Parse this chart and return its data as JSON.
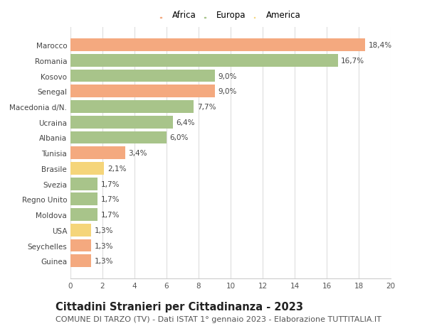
{
  "countries": [
    "Marocco",
    "Romania",
    "Kosovo",
    "Senegal",
    "Macedonia d/N.",
    "Ucraina",
    "Albania",
    "Tunisia",
    "Brasile",
    "Svezia",
    "Regno Unito",
    "Moldova",
    "USA",
    "Seychelles",
    "Guinea"
  ],
  "values": [
    18.4,
    16.7,
    9.0,
    9.0,
    7.7,
    6.4,
    6.0,
    3.4,
    2.1,
    1.7,
    1.7,
    1.7,
    1.3,
    1.3,
    1.3
  ],
  "labels": [
    "18,4%",
    "16,7%",
    "9,0%",
    "9,0%",
    "7,7%",
    "6,4%",
    "6,0%",
    "3,4%",
    "2,1%",
    "1,7%",
    "1,7%",
    "1,7%",
    "1,3%",
    "1,3%",
    "1,3%"
  ],
  "colors": [
    "#F4A97F",
    "#A8C48A",
    "#A8C48A",
    "#F4A97F",
    "#A8C48A",
    "#A8C48A",
    "#A8C48A",
    "#F4A97F",
    "#F5D57A",
    "#A8C48A",
    "#A8C48A",
    "#A8C48A",
    "#F5D57A",
    "#F4A97F",
    "#F4A97F"
  ],
  "legend_labels": [
    "Africa",
    "Europa",
    "America"
  ],
  "legend_colors": [
    "#F4A97F",
    "#A8C48A",
    "#F5D57A"
  ],
  "title": "Cittadini Stranieri per Cittadinanza - 2023",
  "subtitle": "COMUNE DI TARZO (TV) - Dati ISTAT 1° gennaio 2023 - Elaborazione TUTTITALIA.IT",
  "xlim": [
    0,
    20
  ],
  "xticks": [
    0,
    2,
    4,
    6,
    8,
    10,
    12,
    14,
    16,
    18,
    20
  ],
  "background_color": "#ffffff",
  "grid_color": "#dddddd",
  "bar_height": 0.82,
  "title_fontsize": 10.5,
  "subtitle_fontsize": 8,
  "label_fontsize": 7.5,
  "tick_fontsize": 7.5,
  "legend_fontsize": 8.5
}
